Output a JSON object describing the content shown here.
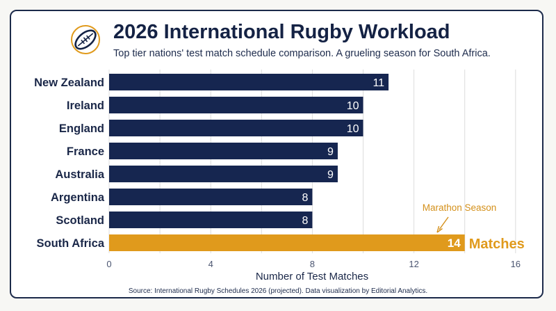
{
  "header": {
    "title": "2026 International Rugby Workload",
    "subtitle": "Top tier nations' test match schedule comparison. A grueling season for South Africa.",
    "logo_icon": "rugby-ball-icon"
  },
  "colors": {
    "bar": "#162650",
    "highlight": "#e09a1c",
    "grid": "#dcdcdc",
    "text": "#1a2748"
  },
  "chart_data": {
    "type": "bar",
    "orientation": "horizontal",
    "categories": [
      "New Zealand",
      "Ireland",
      "England",
      "France",
      "Australia",
      "Argentina",
      "Scotland",
      "South Africa"
    ],
    "values": [
      11,
      10,
      10,
      9,
      9,
      8,
      8,
      14
    ],
    "highlight_category": "South Africa",
    "highlight_value_suffix": "Matches",
    "xlabel": "Number of Test Matches",
    "ylabel": "",
    "xlim": [
      0,
      16
    ],
    "xticks": [
      0,
      4,
      8,
      12,
      16
    ],
    "grid": true,
    "annotation": {
      "text": "Marathon Season",
      "target": "South Africa"
    }
  },
  "footer": {
    "source": "Source: International Rugby Schedules 2026 (projected). Data visualization by Editorial Analytics."
  }
}
